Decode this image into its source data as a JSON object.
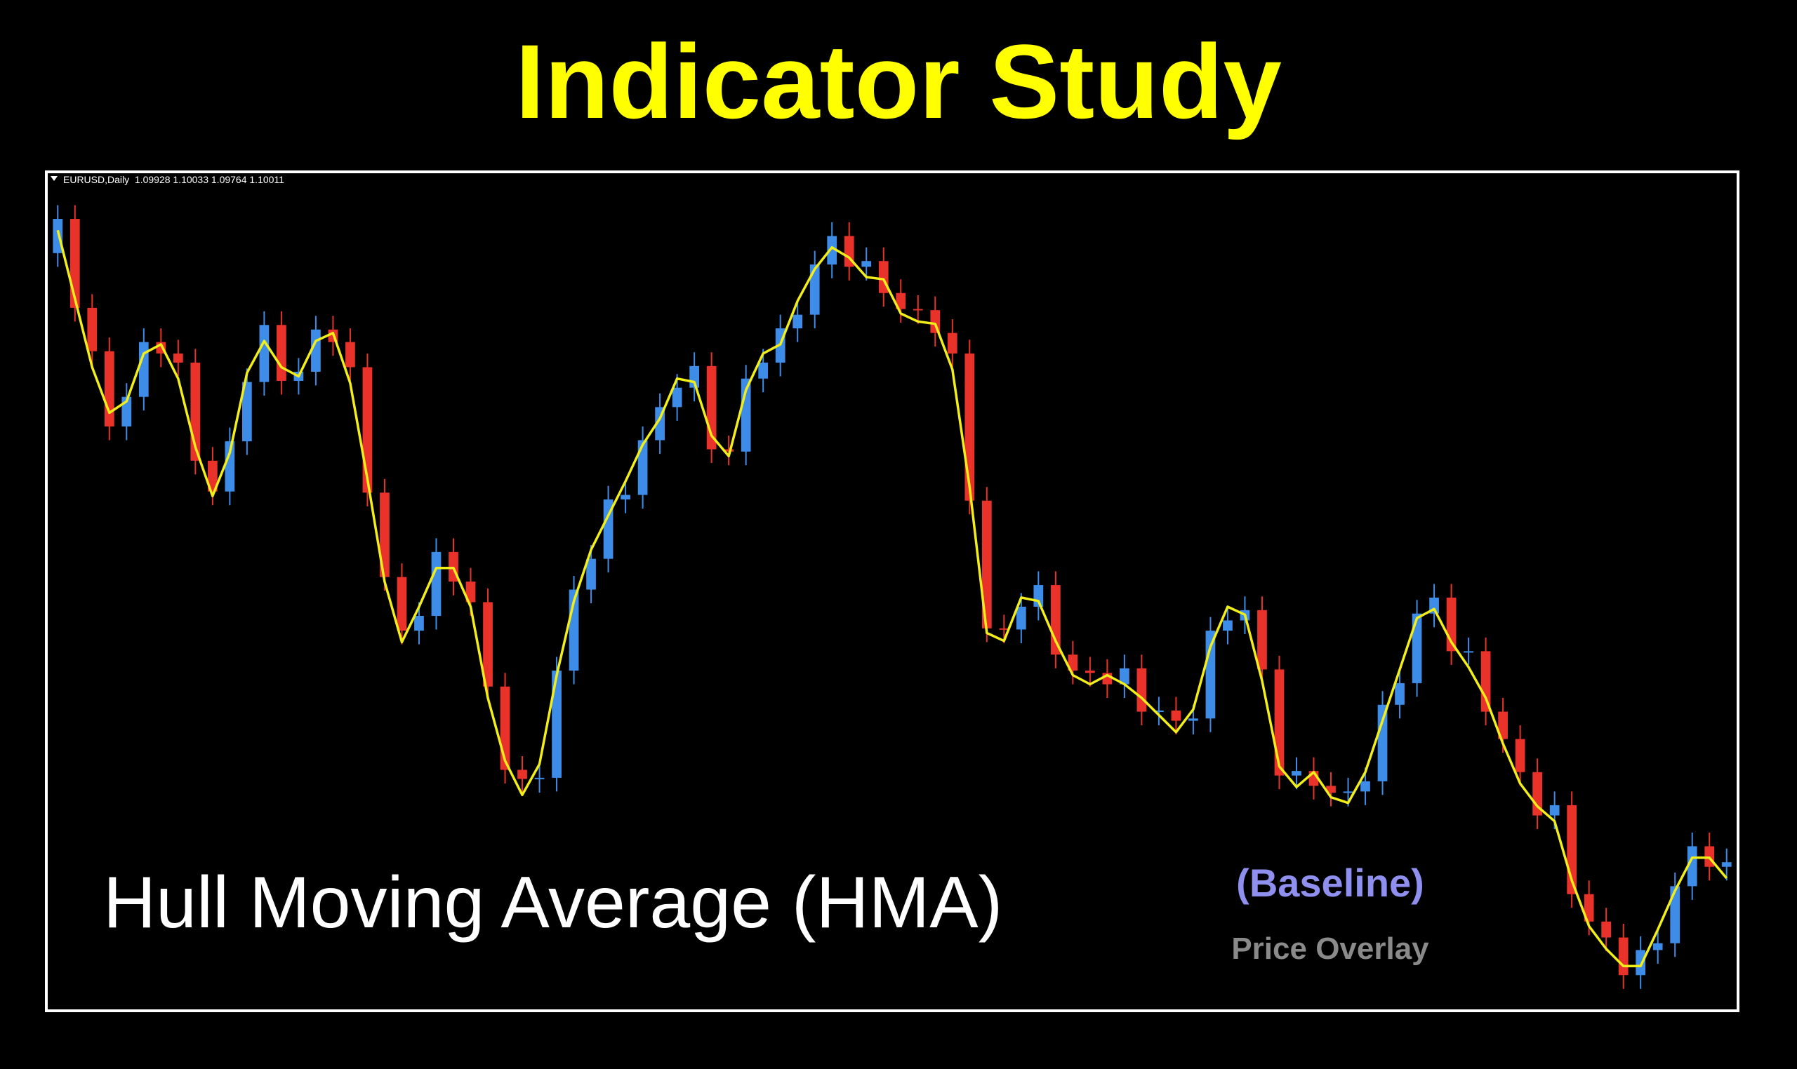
{
  "chart_data": {
    "type": "candlestick",
    "title": "Indicator Study",
    "header": "EURUSD,Daily  1.09928 1.10033 1.09764 1.10011",
    "annotations": [
      "Hull Moving Average (HMA)",
      "(Baseline)",
      "Price Overlay"
    ],
    "up_color": "#3d8de8",
    "down_color": "#e8322a",
    "ylim": [
      1.0667,
      1.14
    ],
    "open": [
      1.133,
      1.136,
      1.1282,
      1.1244,
      1.1178,
      1.1204,
      1.1252,
      1.1242,
      1.1234,
      1.1148,
      1.1121,
      1.1165,
      1.1217,
      1.1267,
      1.1218,
      1.1226,
      1.1263,
      1.1252,
      1.123,
      1.112,
      1.1046,
      1.0999,
      1.1012,
      1.1068,
      1.1042,
      1.1024,
      1.095,
      1.0877,
      1.0869,
      1.087,
      1.0964,
      1.1035,
      1.1062,
      1.1114,
      1.1118,
      1.1166,
      1.1195,
      1.1212,
      1.1231,
      1.1158,
      1.1156,
      1.122,
      1.1234,
      1.1264,
      1.1276,
      1.132,
      1.1345,
      1.1318,
      1.1323,
      1.1295,
      1.1281,
      1.128,
      1.126,
      1.1242,
      1.1113,
      1.1001,
      1.1,
      1.102,
      1.1039,
      1.0978,
      1.0964,
      1.0962,
      1.0952,
      1.0966,
      1.0928,
      1.0929,
      1.092,
      1.0922,
      1.0999,
      1.1008,
      1.1017,
      1.0965,
      1.0872,
      1.0876,
      1.0863,
      1.0857,
      1.0858,
      1.0867,
      1.0934,
      1.0953,
      1.1014,
      1.1028,
      1.0981,
      1.0981,
      1.0928,
      1.0904,
      1.0875,
      1.0837,
      1.0846,
      1.0768,
      1.0744,
      1.073,
      1.0697,
      1.0719,
      1.0725,
      1.0775,
      1.081,
      1.0792
    ],
    "high": [
      1.1372,
      1.1372,
      1.1294,
      1.1256,
      1.1216,
      1.1264,
      1.1264,
      1.1254,
      1.1246,
      1.116,
      1.1177,
      1.1229,
      1.1279,
      1.1279,
      1.1238,
      1.1275,
      1.1275,
      1.1264,
      1.1242,
      1.1132,
      1.1058,
      1.1024,
      1.108,
      1.108,
      1.1054,
      1.1036,
      1.0962,
      1.0889,
      1.0882,
      1.0976,
      1.1047,
      1.1074,
      1.1126,
      1.113,
      1.1178,
      1.1207,
      1.1224,
      1.1243,
      1.1243,
      1.117,
      1.1232,
      1.1246,
      1.1276,
      1.1288,
      1.1332,
      1.1357,
      1.1357,
      1.1335,
      1.1335,
      1.1307,
      1.1293,
      1.1292,
      1.1272,
      1.1254,
      1.1125,
      1.1013,
      1.1032,
      1.1051,
      1.1051,
      1.099,
      1.0976,
      1.0974,
      1.0978,
      1.0978,
      1.0941,
      1.0941,
      1.0934,
      1.1011,
      1.102,
      1.1029,
      1.1029,
      1.0977,
      1.0888,
      1.0888,
      1.0875,
      1.087,
      1.0879,
      1.0946,
      1.0965,
      1.1026,
      1.104,
      1.104,
      1.0993,
      1.0993,
      1.094,
      1.0916,
      1.0887,
      1.0858,
      1.0858,
      1.078,
      1.0756,
      1.0742,
      1.0731,
      1.0737,
      1.0787,
      1.0822,
      1.0822,
      1.0808
    ],
    "low": [
      1.1318,
      1.127,
      1.1232,
      1.1166,
      1.1166,
      1.1192,
      1.123,
      1.1222,
      1.1136,
      1.1109,
      1.1109,
      1.1153,
      1.1205,
      1.1206,
      1.1206,
      1.1214,
      1.124,
      1.1218,
      1.1108,
      1.1034,
      1.0987,
      1.0987,
      1.1,
      1.103,
      1.1012,
      1.0938,
      1.0865,
      1.0857,
      1.0857,
      1.0858,
      1.0952,
      1.1023,
      1.105,
      1.1102,
      1.1106,
      1.1154,
      1.1183,
      1.12,
      1.1146,
      1.1144,
      1.1144,
      1.1208,
      1.1222,
      1.1252,
      1.1264,
      1.1308,
      1.1306,
      1.1306,
      1.1283,
      1.1269,
      1.1268,
      1.1248,
      1.123,
      1.1101,
      1.0989,
      1.0988,
      1.0988,
      1.1008,
      1.0966,
      1.0952,
      1.095,
      1.094,
      1.094,
      1.0916,
      1.0916,
      1.0908,
      1.0908,
      1.091,
      1.0987,
      1.0996,
      1.0953,
      1.086,
      1.086,
      1.0851,
      1.0845,
      1.0845,
      1.0846,
      1.0855,
      1.0922,
      1.0941,
      1.1002,
      1.0969,
      1.0969,
      1.0916,
      1.0892,
      1.0863,
      1.0825,
      1.0825,
      1.0756,
      1.0732,
      1.0718,
      1.0685,
      1.0685,
      1.0707,
      1.0713,
      1.0763,
      1.078,
      1.078
    ],
    "close": [
      1.136,
      1.1282,
      1.1244,
      1.1178,
      1.1204,
      1.1252,
      1.1242,
      1.1234,
      1.1148,
      1.1121,
      1.1165,
      1.1217,
      1.1267,
      1.1218,
      1.1226,
      1.1263,
      1.1252,
      1.123,
      1.112,
      1.1046,
      1.0999,
      1.1012,
      1.1068,
      1.1042,
      1.1024,
      1.095,
      1.0877,
      1.0869,
      1.087,
      1.0964,
      1.1035,
      1.1062,
      1.1114,
      1.1118,
      1.1166,
      1.1195,
      1.1212,
      1.1231,
      1.1158,
      1.1156,
      1.122,
      1.1234,
      1.1264,
      1.1276,
      1.132,
      1.1345,
      1.1318,
      1.1323,
      1.1295,
      1.1281,
      1.128,
      1.126,
      1.1242,
      1.1113,
      1.1001,
      1.1,
      1.102,
      1.1039,
      1.0978,
      1.0964,
      1.0962,
      1.0952,
      1.0966,
      1.0928,
      1.0929,
      1.092,
      1.0922,
      1.0999,
      1.1008,
      1.1017,
      1.0965,
      1.0872,
      1.0876,
      1.0863,
      1.0857,
      1.0858,
      1.0867,
      1.0934,
      1.0953,
      1.1014,
      1.1028,
      1.0981,
      1.0981,
      1.0928,
      1.0904,
      1.0875,
      1.0837,
      1.0846,
      1.0768,
      1.0744,
      1.073,
      1.0697,
      1.0719,
      1.0725,
      1.0775,
      1.081,
      1.0792,
      1.0796
    ],
    "overlay": {
      "color": "#f2ee1a",
      "values": [
        1.135,
        1.129,
        1.123,
        1.119,
        1.12,
        1.1242,
        1.125,
        1.122,
        1.116,
        1.1117,
        1.1155,
        1.1225,
        1.1253,
        1.123,
        1.1222,
        1.1253,
        1.126,
        1.1216,
        1.1132,
        1.1042,
        1.0989,
        1.102,
        1.1054,
        1.1054,
        1.102,
        1.094,
        1.0885,
        1.0855,
        1.0882,
        1.096,
        1.1025,
        1.107,
        1.11,
        1.113,
        1.1162,
        1.1185,
        1.122,
        1.1217,
        1.117,
        1.1152,
        1.121,
        1.1242,
        1.125,
        1.1288,
        1.1316,
        1.1335,
        1.1326,
        1.1309,
        1.1307,
        1.1277,
        1.127,
        1.1268,
        1.1228,
        1.1125,
        1.0997,
        1.099,
        1.1028,
        1.1025,
        1.099,
        1.096,
        1.0952,
        1.096,
        1.0952,
        1.094,
        1.0925,
        1.091,
        1.093,
        1.0985,
        1.102,
        1.1013,
        1.0955,
        1.088,
        1.0862,
        1.0875,
        1.0853,
        1.0848,
        1.0875,
        1.092,
        1.0965,
        1.101,
        1.1018,
        1.0989,
        1.0967,
        1.094,
        1.09,
        1.0865,
        1.0845,
        1.0832,
        1.078,
        1.074,
        1.072,
        1.0705,
        1.0705,
        1.0737,
        1.0771,
        1.08,
        1.08,
        1.0782
      ]
    }
  }
}
